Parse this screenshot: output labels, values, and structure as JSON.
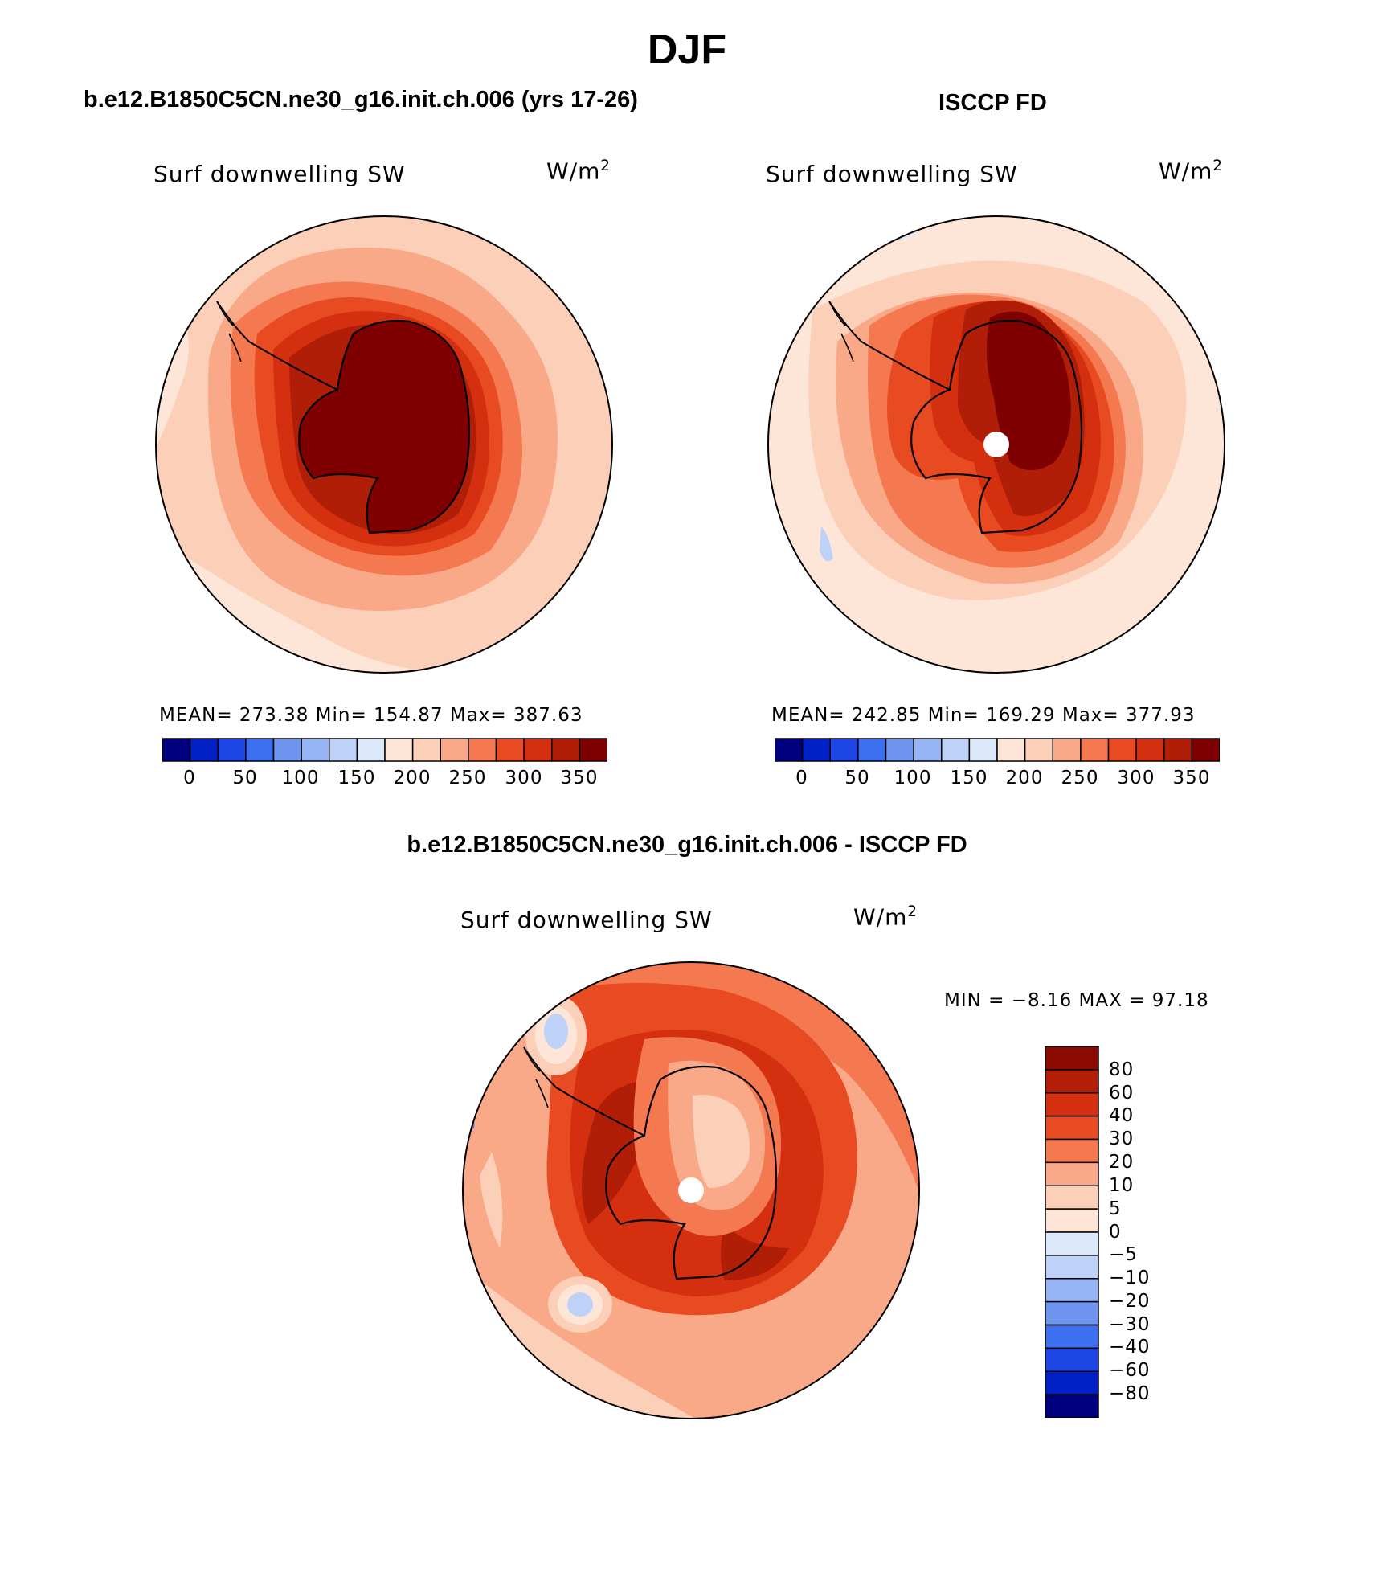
{
  "title": "DJF",
  "panels": [
    {
      "title": "b.e12.B1850C5CN.ne30_g16.init.ch.006 (yrs 17-26)",
      "variable": "Surf downwelling SW",
      "units_base": "W/m",
      "units_exp": "2",
      "stats": "MEAN= 273.38   Min= 154.87   Max= 387.63",
      "colorbar_ticks": [
        "0",
        "50",
        "100",
        "150",
        "200",
        "250",
        "300",
        "350"
      ]
    },
    {
      "title": "ISCCP FD",
      "variable": "Surf downwelling SW",
      "units_base": "W/m",
      "units_exp": "2",
      "stats": "MEAN= 242.85   Min= 169.29   Max= 377.93",
      "colorbar_ticks": [
        "0",
        "50",
        "100",
        "150",
        "200",
        "250",
        "300",
        "350"
      ]
    },
    {
      "title": "b.e12.B1850C5CN.ne30_g16.init.ch.006 - ISCCP FD",
      "variable": "Surf downwelling SW",
      "units_base": "W/m",
      "units_exp": "2",
      "stats": "MIN =   −8.16 MAX =   97.18",
      "colorbar_ticks": [
        "80",
        "60",
        "40",
        "30",
        "20",
        "10",
        "5",
        "0",
        "−5",
        "−10",
        "−20",
        "−30",
        "−40",
        "−60",
        "−80"
      ]
    }
  ],
  "colors": {
    "abs_scale": [
      "#00007f",
      "#0020c8",
      "#1e46e6",
      "#3c6ef0",
      "#6e96f0",
      "#96b4f5",
      "#bed2f8",
      "#dce9fa",
      "#fde6d8",
      "#fcd0b8",
      "#f9a888",
      "#f47850",
      "#e84a22",
      "#d43010",
      "#b01e08",
      "#7f0000"
    ],
    "diff_scale": [
      "#8c0a00",
      "#b41e08",
      "#d43010",
      "#e84a22",
      "#f47850",
      "#f9a888",
      "#fcd0b8",
      "#fde6d8",
      "#dce9fa",
      "#bed2f8",
      "#96b4f5",
      "#6e96f0",
      "#3c6ef0",
      "#1e46e6",
      "#0020c8",
      "#00007f"
    ]
  }
}
